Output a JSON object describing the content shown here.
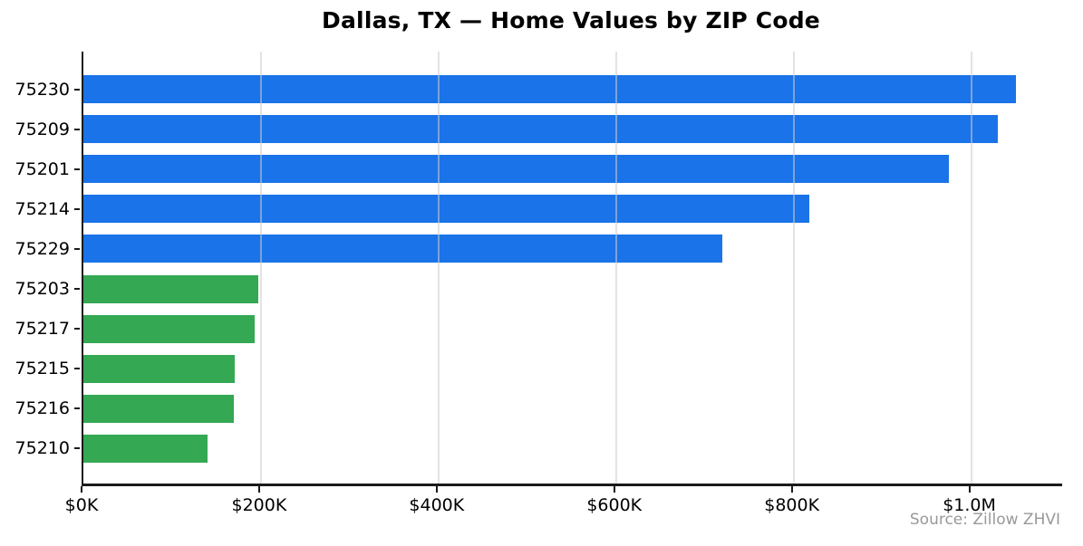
{
  "chart_data": {
    "type": "bar",
    "orientation": "horizontal",
    "title": "Dallas, TX — Home Values by ZIP Code",
    "categories": [
      "75230",
      "75209",
      "75201",
      "75214",
      "75229",
      "75203",
      "75217",
      "75215",
      "75216",
      "75210"
    ],
    "values": [
      1050000,
      1030000,
      975000,
      818000,
      720000,
      197000,
      193000,
      170000,
      169000,
      140000
    ],
    "bar_colors": [
      "#1a73e8",
      "#1a73e8",
      "#1a73e8",
      "#1a73e8",
      "#1a73e8",
      "#34a853",
      "#34a853",
      "#34a853",
      "#34a853",
      "#34a853"
    ],
    "x_ticks": [
      "$0K",
      "$200K",
      "$400K",
      "$600K",
      "$800K",
      "$1.0M"
    ],
    "x_tick_values": [
      0,
      200000,
      400000,
      600000,
      800000,
      1000000
    ],
    "xlim": [
      0,
      1102500
    ],
    "grid": "vertical-light-gray-over-bars",
    "legend": "none",
    "source": "Source: Zillow ZHVI",
    "accent_colors": {
      "blue": "#1a73e8",
      "green": "#34a853"
    }
  }
}
